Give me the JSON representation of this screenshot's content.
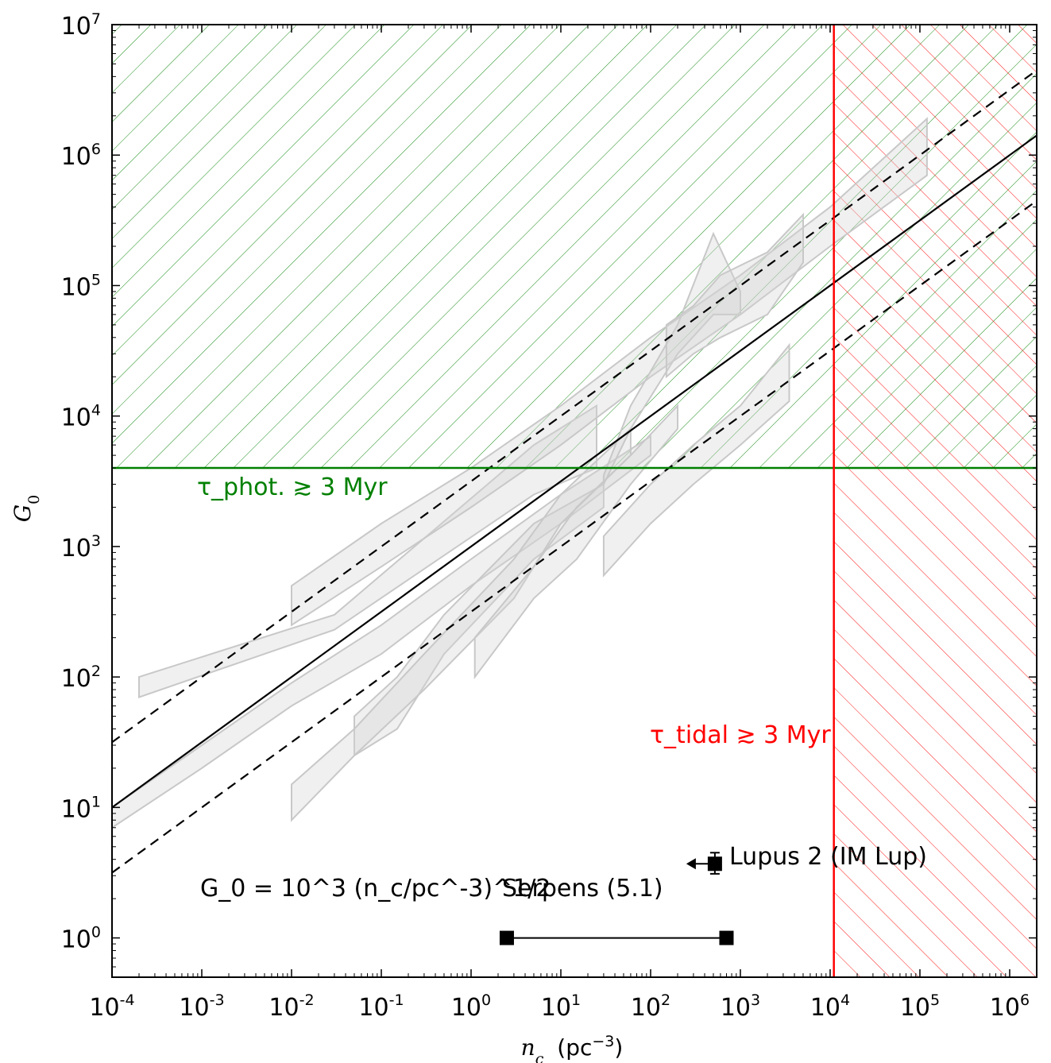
{
  "chart_data": {
    "type": "scatter",
    "title": "",
    "xlabel": "n_c (pc^-3)",
    "ylabel": "G_0",
    "xscale": "log",
    "yscale": "log",
    "xlim": [
      0.0001,
      2000000
    ],
    "ylim": [
      0.5,
      10000000
    ],
    "x_tick_labels": [
      "10^-4",
      "10^-3",
      "10^-2",
      "10^-1",
      "10^0",
      "10^1",
      "10^2",
      "10^3",
      "10^4",
      "10^5",
      "10^6"
    ],
    "y_tick_labels": [
      "10^0",
      "10^1",
      "10^2",
      "10^3",
      "10^4",
      "10^5",
      "10^6",
      "10^7"
    ],
    "grid": false,
    "relation_label": "G_0 = 10^3 (n_c/pc^-3)^1/2",
    "relation": {
      "coefficient": 1000,
      "exponent": 0.5,
      "dashed_offsets_factor": [
        0.316,
        3.16
      ]
    },
    "thresholds": [
      {
        "name": "τ_phot. ≳ 3 Myr",
        "axis": "y",
        "value": 4000,
        "color": "#008000",
        "hatch": "above"
      },
      {
        "name": "τ_tidal ≳ 3 Myr",
        "axis": "x",
        "value": 11000,
        "color": "#ff0000",
        "hatch": "right"
      }
    ],
    "regions": {
      "name": "",
      "color": "#d3d3d3",
      "bands": [
        {
          "x": [
            0.0002,
            0.03,
            5,
            25
          ],
          "low": [
            70,
            230,
            2500,
            4000
          ],
          "high": [
            100,
            300,
            6000,
            12000
          ]
        },
        {
          "x": [
            0.01,
            0.1,
            1,
            10,
            100,
            1000,
            10000,
            120000
          ],
          "low": [
            250,
            700,
            2000,
            6000,
            20000,
            60000,
            200000,
            700000
          ],
          "high": [
            500,
            1500,
            4000,
            12000,
            40000,
            120000,
            400000,
            1900000
          ]
        },
        {
          "x": [
            0.0001,
            0.001,
            0.01,
            0.1,
            1,
            10,
            100
          ],
          "low": [
            7,
            20,
            60,
            150,
            500,
            1500,
            5000
          ],
          "high": [
            10,
            30,
            90,
            250,
            800,
            2500,
            7000
          ]
        },
        {
          "x": [
            0.05,
            0.15,
            0.5,
            5,
            30
          ],
          "low": [
            25,
            40,
            150,
            800,
            2000
          ],
          "high": [
            50,
            100,
            300,
            1500,
            3000
          ]
        },
        {
          "x": [
            0.01,
            0.05,
            0.3,
            3,
            10,
            60
          ],
          "low": [
            8,
            25,
            80,
            400,
            1500,
            5000
          ],
          "high": [
            15,
            40,
            150,
            800,
            2500,
            8000
          ]
        },
        {
          "x": [
            1.1,
            5,
            15,
            60,
            200
          ],
          "low": [
            100,
            400,
            800,
            3000,
            8000
          ],
          "high": [
            200,
            700,
            2000,
            5000,
            12000
          ]
        },
        {
          "x": [
            30,
            100,
            300,
            1000,
            3500
          ],
          "low": [
            600,
            1500,
            3000,
            6000,
            13000
          ],
          "high": [
            1200,
            3000,
            6000,
            12000,
            35000
          ]
        },
        {
          "x": [
            30,
            60,
            200,
            500,
            1000
          ],
          "low": [
            3000,
            8000,
            30000,
            60000,
            60000
          ],
          "high": [
            3500,
            12000,
            50000,
            250000,
            90000
          ]
        },
        {
          "x": [
            150,
            300,
            600,
            2000,
            5000
          ],
          "low": [
            20000,
            30000,
            40000,
            60000,
            150000
          ],
          "high": [
            50000,
            70000,
            120000,
            180000,
            350000
          ]
        }
      ]
    },
    "points": [
      {
        "name": "Lupus 2 (IM Lup)",
        "x": 520,
        "y": 3.7,
        "yerr_low": 0.6,
        "yerr_high": 0.8,
        "upper_limit_x": true
      },
      {
        "name": "Serpens (5.1)",
        "x": [
          2.5,
          700
        ],
        "y": [
          1,
          1
        ],
        "connected": true
      }
    ]
  }
}
